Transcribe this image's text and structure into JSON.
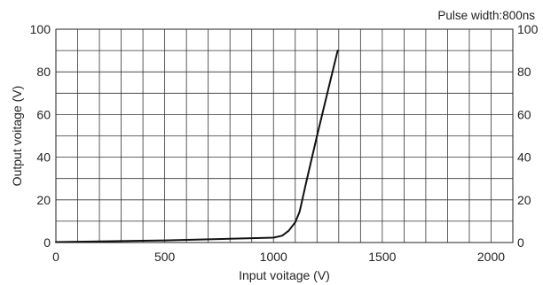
{
  "chart_data": {
    "type": "line",
    "annotation": "Pulse width:800ns",
    "xlabel": "Input voitage (V)",
    "ylabel": "Output voitage (V)",
    "xlim": [
      0,
      2100
    ],
    "ylim": [
      0,
      100
    ],
    "x_ticks": [
      0,
      500,
      1000,
      1500,
      2000
    ],
    "y_ticks": [
      0,
      20,
      40,
      60,
      80,
      100
    ],
    "x_grid_step": 100,
    "y_grid_step": 10,
    "grid": true,
    "right_y_axis_labels": true,
    "series": [
      {
        "color": "#111111",
        "points": [
          [
            0,
            0.2
          ],
          [
            500,
            1.0
          ],
          [
            1000,
            2.3
          ],
          [
            1040,
            3.2
          ],
          [
            1070,
            5.5
          ],
          [
            1100,
            9.5
          ],
          [
            1120,
            14.5
          ],
          [
            1150,
            28
          ],
          [
            1200,
            50
          ],
          [
            1250,
            71
          ],
          [
            1295,
            90
          ]
        ]
      }
    ]
  }
}
